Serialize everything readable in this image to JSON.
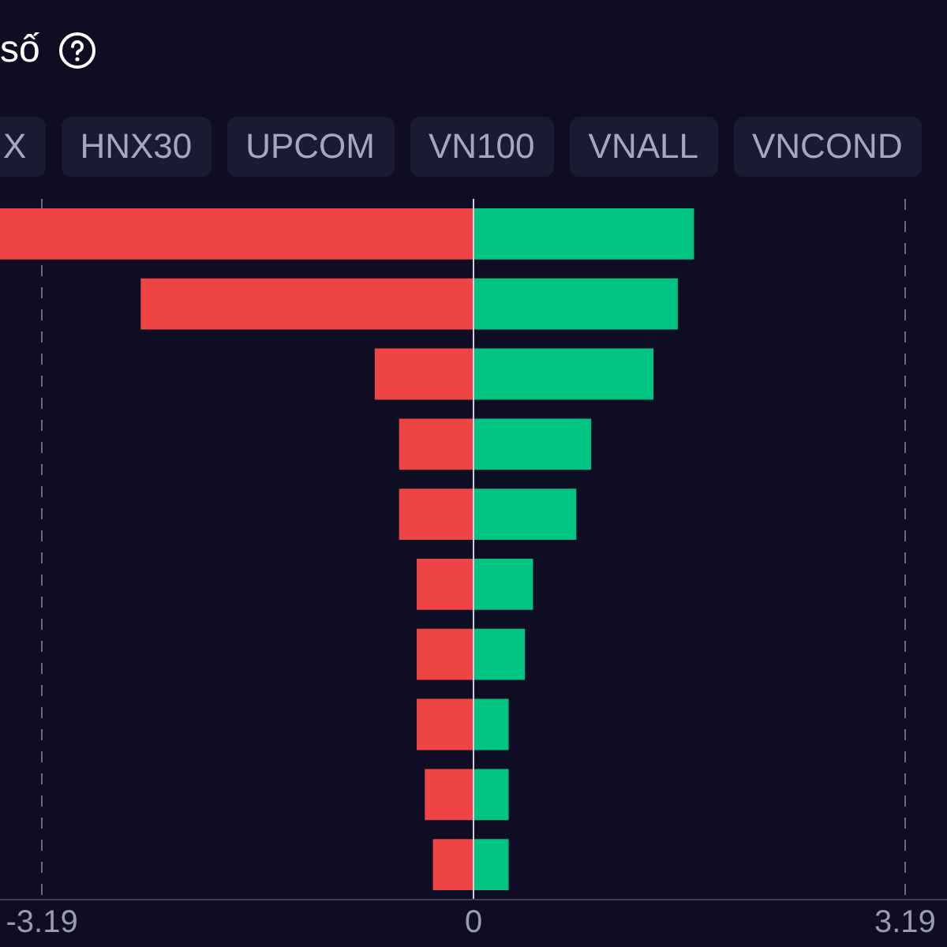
{
  "chart_data": {
    "type": "bar",
    "orientation": "horizontal",
    "stacked": true,
    "title": "số",
    "annotations": [
      "X",
      "HNX30",
      "UPCOM",
      "VN100",
      "VNALL",
      "VNCOND"
    ],
    "categories": [
      null,
      null,
      null,
      null,
      null,
      null,
      null,
      null,
      null,
      null
    ],
    "series": [
      {
        "color": "#ef4444",
        "values": [
          -3.5,
          -2.46,
          -0.73,
          -0.55,
          -0.55,
          -0.42,
          -0.42,
          -0.42,
          -0.36,
          -0.3
        ]
      },
      {
        "color": "#00c482",
        "values": [
          1.63,
          1.51,
          1.33,
          0.87,
          0.76,
          0.44,
          0.38,
          0.26,
          0.26,
          0.26
        ]
      }
    ],
    "xlim": [
      -3.5,
      3.5
    ],
    "xticks": [
      {
        "value": -3.19,
        "label": "-3.19"
      },
      0,
      3.19
    ],
    "grid": "x",
    "legend": false
  }
}
